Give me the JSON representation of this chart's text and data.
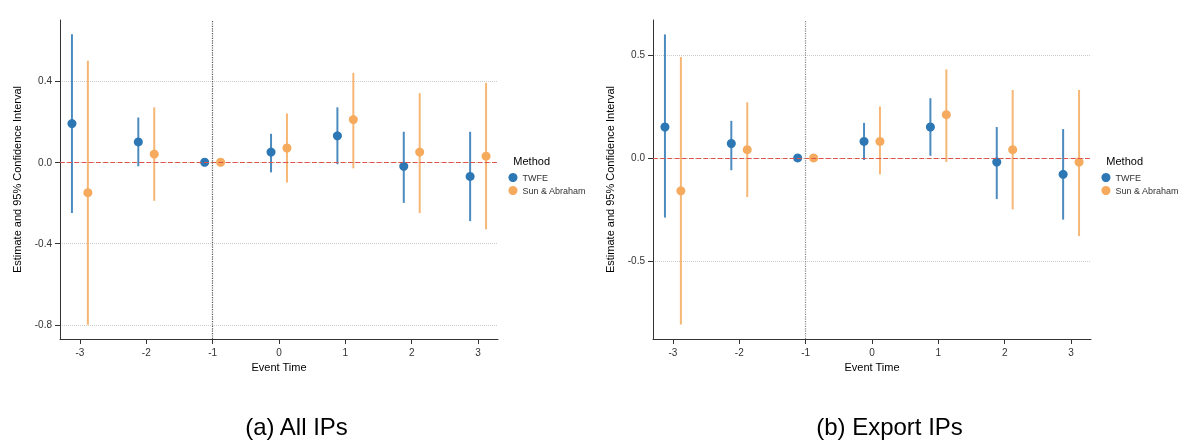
{
  "chart_data": [
    {
      "type": "scatter",
      "title": "(a) All IPs",
      "xlabel": "Event Time",
      "ylabel": "Estimate and 95% Confidence Interval",
      "legend_title": "Method",
      "legend": "right",
      "grid": "y",
      "marker": "circle",
      "xlim": [
        -3.3,
        3.3
      ],
      "xticks": [
        -3,
        -2,
        -1,
        0,
        1,
        2,
        3
      ],
      "ylim": [
        -0.87,
        0.7
      ],
      "yticks": [
        -0.8,
        -0.4,
        {
          "value": 0,
          "label": "0.0"
        },
        0.4
      ],
      "ref_lines": [
        {
          "axis": "y",
          "value": 0,
          "color": "#e0534a",
          "line_style": "dashed"
        },
        {
          "axis": "x",
          "value": -1,
          "color": "#555555",
          "line_style": "dotted"
        }
      ],
      "series": [
        {
          "name": "TWFE",
          "color": "#2d77b4",
          "x": [
            -3.12,
            -2.12,
            -1.12,
            -0.12,
            0.88,
            1.88,
            2.88
          ],
          "values": [
            0.19,
            0.1,
            0,
            0.05,
            0.13,
            -0.02,
            -0.07
          ],
          "errors": [
            [
              -0.25,
              0.63
            ],
            [
              -0.02,
              0.22
            ],
            null,
            [
              -0.05,
              0.14
            ],
            [
              -0.01,
              0.27
            ],
            [
              -0.2,
              0.15
            ],
            [
              -0.29,
              0.15
            ]
          ]
        },
        {
          "name": "Sun & Abraham",
          "color": "#f5aa5e",
          "x": [
            -2.88,
            -1.88,
            -0.88,
            0.12,
            1.12,
            2.12,
            3.12
          ],
          "values": [
            -0.15,
            0.04,
            0,
            0.07,
            0.21,
            0.05,
            0.03
          ],
          "errors": [
            [
              -0.8,
              0.5
            ],
            [
              -0.19,
              0.27
            ],
            null,
            [
              -0.1,
              0.24
            ],
            [
              -0.03,
              0.44
            ],
            [
              -0.25,
              0.34
            ],
            [
              -0.33,
              0.39
            ]
          ]
        }
      ]
    },
    {
      "type": "scatter",
      "title": "(b) Export IPs",
      "xlabel": "Event Time",
      "ylabel": "Estimate and 95% Confidence Interval",
      "legend_title": "Method",
      "legend": "right",
      "grid": "y",
      "marker": "circle",
      "xlim": [
        -3.3,
        3.3
      ],
      "xticks": [
        -3,
        -2,
        -1,
        0,
        1,
        2,
        3
      ],
      "ylim": [
        -0.88,
        0.67
      ],
      "yticks": [
        -0.5,
        {
          "value": 0,
          "label": "0.0"
        },
        0.5
      ],
      "ref_lines": [
        {
          "axis": "y",
          "value": 0,
          "color": "#e0534a",
          "line_style": "dashed"
        },
        {
          "axis": "x",
          "value": -1,
          "color": "#888888",
          "line_style": "dotted"
        }
      ],
      "series": [
        {
          "name": "TWFE",
          "color": "#2d77b4",
          "x": [
            -3.12,
            -2.12,
            -1.12,
            -0.12,
            0.88,
            1.88,
            2.88
          ],
          "values": [
            0.15,
            0.07,
            0,
            0.08,
            0.15,
            -0.02,
            -0.08
          ],
          "errors": [
            [
              -0.29,
              0.6
            ],
            [
              -0.06,
              0.18
            ],
            null,
            [
              -0.01,
              0.17
            ],
            [
              0.01,
              0.29
            ],
            [
              -0.2,
              0.15
            ],
            [
              -0.3,
              0.14
            ]
          ]
        },
        {
          "name": "Sun & Abraham",
          "color": "#f5aa5e",
          "x": [
            -2.88,
            -1.88,
            -0.88,
            0.12,
            1.12,
            2.12,
            3.12
          ],
          "values": [
            -0.16,
            0.04,
            0,
            0.08,
            0.21,
            0.04,
            -0.02
          ],
          "errors": [
            [
              -0.81,
              0.49
            ],
            [
              -0.19,
              0.27
            ],
            null,
            [
              -0.08,
              0.25
            ],
            [
              -0.02,
              0.43
            ],
            [
              -0.25,
              0.33
            ],
            [
              -0.38,
              0.33
            ]
          ]
        }
      ]
    }
  ]
}
